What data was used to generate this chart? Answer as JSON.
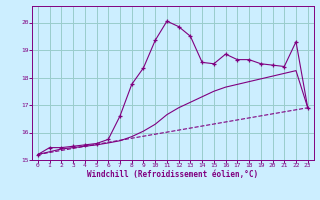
{
  "xlabel": "Windchill (Refroidissement éolien,°C)",
  "bg_color": "#cceeff",
  "line_color": "#800080",
  "grid_color": "#99cccc",
  "xlim": [
    -0.5,
    23.5
  ],
  "ylim": [
    15.0,
    20.6
  ],
  "yticks": [
    15,
    16,
    17,
    18,
    19,
    20
  ],
  "xticks": [
    0,
    1,
    2,
    3,
    4,
    5,
    6,
    7,
    8,
    9,
    10,
    11,
    12,
    13,
    14,
    15,
    16,
    17,
    18,
    19,
    20,
    21,
    22,
    23
  ],
  "line1_x": [
    0,
    1,
    2,
    3,
    4,
    5,
    6,
    7,
    8,
    9,
    10,
    11,
    12,
    13,
    14,
    15,
    16,
    17,
    18,
    19,
    20,
    21,
    22,
    23
  ],
  "line1_y": [
    15.2,
    15.45,
    15.45,
    15.5,
    15.55,
    15.6,
    15.75,
    16.6,
    17.75,
    18.35,
    19.35,
    20.05,
    19.85,
    19.5,
    18.55,
    18.5,
    18.85,
    18.65,
    18.65,
    18.5,
    18.45,
    18.4,
    19.3,
    16.9
  ],
  "line2_x": [
    0,
    1,
    2,
    3,
    4,
    5,
    6,
    7,
    8,
    9,
    10,
    11,
    12,
    13,
    14,
    15,
    16,
    17,
    18,
    19,
    20,
    21,
    22,
    23
  ],
  "line2_y": [
    15.2,
    15.3,
    15.4,
    15.45,
    15.5,
    15.55,
    15.62,
    15.7,
    15.85,
    16.05,
    16.3,
    16.65,
    16.9,
    17.1,
    17.3,
    17.5,
    17.65,
    17.75,
    17.85,
    17.95,
    18.05,
    18.15,
    18.25,
    16.9
  ],
  "line3_x": [
    0,
    23
  ],
  "line3_y": [
    15.2,
    16.9
  ]
}
